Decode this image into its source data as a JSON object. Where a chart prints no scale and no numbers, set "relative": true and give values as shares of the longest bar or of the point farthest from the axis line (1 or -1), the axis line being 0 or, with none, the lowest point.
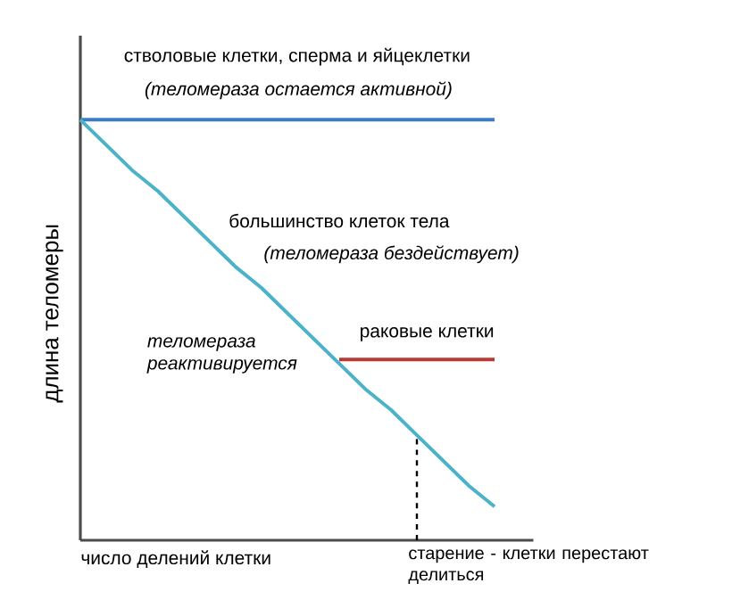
{
  "chart_data": {
    "type": "line",
    "relative": true,
    "xlabel": "число делений клетки",
    "ylabel": "длина теломеры",
    "categories": [
      null,
      null,
      null,
      null,
      null,
      null,
      null,
      null,
      null,
      null,
      null,
      null,
      null,
      null,
      null,
      null,
      null
    ],
    "series": [
      {
        "name": "стволовые клетки, сперма и яйцеклетки",
        "color": "#3b7dc4",
        "values": [
          1,
          1,
          1,
          1,
          1,
          1,
          1,
          1,
          1,
          1,
          1,
          1,
          1,
          1,
          1,
          1,
          1
        ]
      },
      {
        "name": "большинство клеток тела",
        "color": "#4bb3c8",
        "values": [
          1,
          0.94,
          0.88,
          0.83,
          0.77,
          0.71,
          0.65,
          0.6,
          0.54,
          0.48,
          0.42,
          0.36,
          0.31,
          0.25,
          0.19,
          0.13,
          0.08
        ]
      },
      {
        "name": "раковые клетки",
        "color": "#b83a35",
        "values": [
          null,
          null,
          null,
          null,
          null,
          null,
          null,
          null,
          null,
          null,
          0.43,
          0.43,
          0.43,
          0.43,
          0.43,
          0.43,
          0.43
        ]
      }
    ],
    "annotations": [
      "(теломераза остается активной)",
      "(теломераза бездействует)",
      "теломераза реактивируется",
      "старение - клетки перестают делиться"
    ]
  }
}
